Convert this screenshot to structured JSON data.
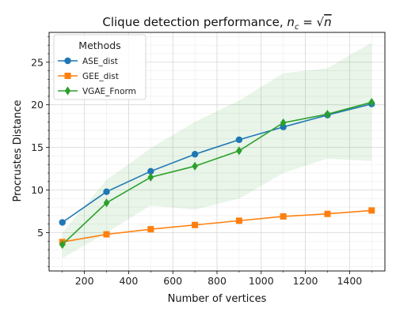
{
  "chart_data": {
    "type": "line",
    "title_prefix": "Clique detection performance, ",
    "title_math": {
      "base": "n",
      "sub": "c",
      "eq": " = ",
      "radicand": "n"
    },
    "xlabel": "Number of vertices",
    "ylabel": "Procrustes Distance",
    "xlim": [
      40,
      1560
    ],
    "ylim": [
      0.5,
      28.5
    ],
    "xticks": [
      200,
      400,
      600,
      800,
      1000,
      1200,
      1400
    ],
    "xtick_labels": [
      "200",
      "400",
      "600",
      "800",
      "1000",
      "1200",
      "1400"
    ],
    "yticks": [
      5,
      10,
      15,
      20,
      25
    ],
    "ytick_labels": [
      "5",
      "10",
      "15",
      "20",
      "25"
    ],
    "grid": true,
    "legend": {
      "title": "Methods",
      "placement": "upper-left"
    },
    "x": [
      100,
      300,
      500,
      700,
      900,
      1100,
      1300,
      1500
    ],
    "series": [
      {
        "name": "ASE_dist",
        "color": "#1f77b4",
        "marker": "circle",
        "values": [
          6.2,
          9.8,
          12.2,
          14.2,
          15.9,
          17.4,
          18.8,
          20.1
        ]
      },
      {
        "name": "GEE_dist",
        "color": "#ff7f0e",
        "marker": "square",
        "values": [
          3.9,
          4.8,
          5.4,
          5.9,
          6.4,
          6.9,
          7.2,
          7.6
        ]
      },
      {
        "name": "VGAE_Fnorm",
        "color": "#2ca02c",
        "marker": "diamond",
        "values": [
          3.6,
          8.5,
          11.5,
          12.8,
          14.6,
          17.9,
          18.9,
          20.3
        ],
        "band_lower": [
          2.0,
          5.0,
          8.2,
          7.7,
          9.0,
          12.0,
          13.7,
          13.4
        ],
        "band_upper": [
          5.0,
          11.2,
          14.9,
          18.0,
          20.5,
          23.7,
          24.3,
          27.3
        ]
      }
    ]
  }
}
